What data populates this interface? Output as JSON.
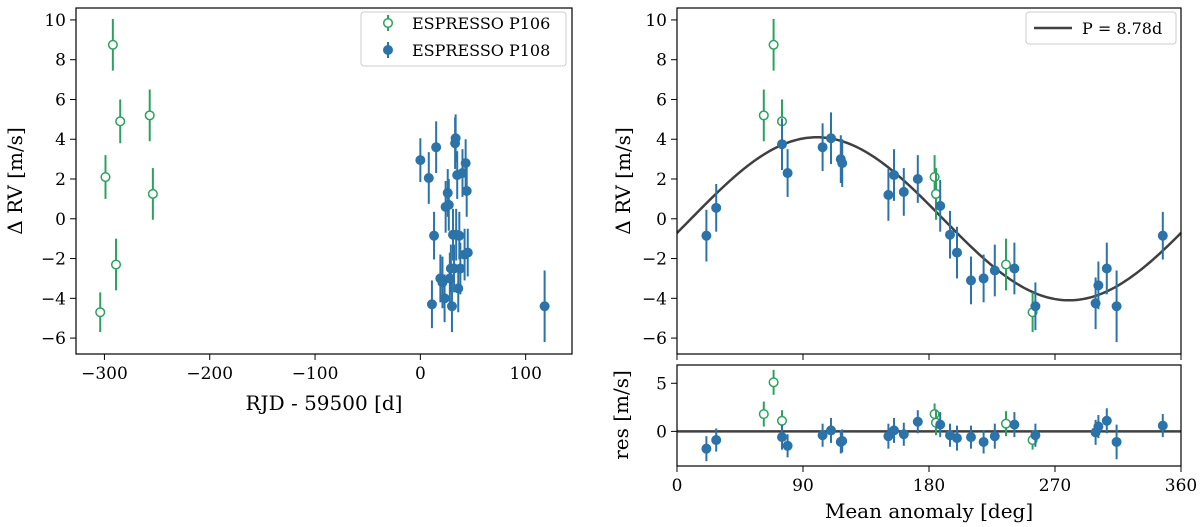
{
  "chart_data": [
    {
      "id": "time",
      "type": "scatter",
      "xlabel": "RJD - 59500 [d]",
      "ylabel": "Δ RV [m/s]",
      "xlim": [
        -327,
        144
      ],
      "ylim": [
        -6.8,
        10.6
      ],
      "xticks": [
        -300,
        -200,
        -100,
        0,
        100
      ],
      "yticks": [
        -6,
        -4,
        -2,
        0,
        2,
        4,
        6,
        8,
        10
      ],
      "legend": {
        "placement": "top-right",
        "entries": [
          "ESPRESSO P106",
          "ESPRESSO P108"
        ]
      },
      "series": [
        {
          "name": "ESPRESSO P106",
          "marker": "open-circle",
          "color": "#2ca25f",
          "x": [
            -304,
            -299,
            -292,
            -289,
            -285,
            -257,
            -254
          ],
          "y": [
            -4.7,
            2.1,
            8.75,
            -2.3,
            4.9,
            5.2,
            1.25
          ],
          "err": [
            1.0,
            1.1,
            1.3,
            1.3,
            1.1,
            1.3,
            1.3
          ]
        },
        {
          "name": "ESPRESSO P108",
          "marker": "filled-circle",
          "color": "#2b73a8",
          "x": [
            0,
            8,
            11,
            13,
            15,
            19,
            21,
            23,
            24,
            26,
            27,
            28,
            29,
            30,
            31,
            32,
            33,
            33.5,
            34,
            35,
            36,
            37,
            38,
            40,
            42,
            43,
            44,
            45,
            118
          ],
          "y": [
            2.95,
            2.05,
            -4.3,
            -0.85,
            3.6,
            -3.0,
            -3.2,
            -4.0,
            0.6,
            1.3,
            0.7,
            -3.0,
            -2.5,
            -4.4,
            -0.8,
            -2.5,
            3.8,
            4.05,
            -0.8,
            2.2,
            -3.5,
            -0.85,
            -2.5,
            2.3,
            -1.8,
            2.8,
            1.4,
            -1.7,
            -4.4
          ],
          "err": [
            1.1,
            1.3,
            1.2,
            1.2,
            1.3,
            1.2,
            1.3,
            1.2,
            1.3,
            1.2,
            1.3,
            1.3,
            1.2,
            1.3,
            1.3,
            1.2,
            1.3,
            1.2,
            1.3,
            1.2,
            1.2,
            1.2,
            1.3,
            1.2,
            1.3,
            1.2,
            1.3,
            1.2,
            1.8
          ]
        }
      ]
    },
    {
      "id": "phase",
      "type": "scatter",
      "xlabel": "Mean anomaly [deg]",
      "ylabel": "Δ RV [m/s]",
      "xlim": [
        0,
        360
      ],
      "ylim": [
        -6.8,
        10.6
      ],
      "yticks": [
        -6,
        -4,
        -2,
        0,
        2,
        4,
        6,
        8,
        10
      ],
      "legend": {
        "placement": "top-right",
        "entries": [
          "P = 8.78d"
        ]
      },
      "model": {
        "name": "P = 8.78d",
        "amplitude": 4.1,
        "phase_peak_deg": 100
      },
      "series": [
        {
          "name": "ESPRESSO P106",
          "marker": "open-circle",
          "color": "#2ca25f",
          "x": [
            62,
            69,
            75,
            184,
            185,
            235,
            254
          ],
          "y": [
            5.2,
            8.75,
            4.9,
            2.1,
            1.25,
            -2.3,
            -4.7
          ],
          "err": [
            1.3,
            1.3,
            1.1,
            1.1,
            1.3,
            1.3,
            1.0
          ]
        },
        {
          "name": "ESPRESSO P108",
          "marker": "filled-circle",
          "color": "#2b73a8",
          "x": [
            21,
            28,
            75,
            79,
            104,
            110,
            117,
            118,
            151,
            155,
            162,
            172,
            188,
            195,
            200,
            210,
            219,
            227,
            241,
            256,
            299,
            301,
            307,
            314,
            347
          ],
          "y": [
            -0.85,
            0.55,
            3.75,
            2.3,
            3.6,
            4.05,
            3.0,
            2.8,
            1.2,
            2.2,
            1.35,
            2.0,
            0.65,
            -0.8,
            -1.7,
            -3.1,
            -3.0,
            -2.6,
            -2.5,
            -4.4,
            -4.25,
            -3.35,
            -2.5,
            -4.4,
            -0.85
          ],
          "err": [
            1.3,
            1.2,
            1.3,
            1.2,
            1.2,
            1.3,
            1.2,
            1.2,
            1.3,
            1.3,
            1.2,
            1.2,
            1.3,
            1.2,
            1.3,
            1.2,
            1.2,
            1.3,
            1.3,
            1.2,
            1.3,
            1.2,
            1.3,
            1.8,
            1.2
          ]
        }
      ]
    },
    {
      "id": "residuals",
      "type": "scatter",
      "xlabel": "Mean anomaly [deg]",
      "ylabel": "res [m/s]",
      "xlim": [
        0,
        360
      ],
      "ylim": [
        -3.6,
        6.9
      ],
      "xticks": [
        0,
        90,
        180,
        270,
        360
      ],
      "yticks": [
        0,
        5
      ],
      "zero_line": true,
      "series": [
        {
          "name": "ESPRESSO P106",
          "marker": "open-circle",
          "color": "#2ca25f",
          "x": [
            62,
            69,
            75,
            184,
            185,
            235,
            254
          ],
          "y": [
            1.8,
            5.1,
            1.1,
            1.8,
            0.9,
            0.8,
            -0.9
          ],
          "err": [
            1.3,
            1.3,
            1.1,
            1.1,
            1.3,
            1.3,
            1.0
          ]
        },
        {
          "name": "ESPRESSO P108",
          "marker": "filled-circle",
          "color": "#2b73a8",
          "x": [
            21,
            28,
            75,
            79,
            104,
            110,
            117,
            118,
            151,
            155,
            162,
            172,
            188,
            195,
            200,
            210,
            219,
            227,
            241,
            256,
            299,
            301,
            307,
            314,
            347
          ],
          "y": [
            -1.8,
            -0.9,
            -0.6,
            -1.5,
            -0.4,
            0.1,
            -1.1,
            -1.0,
            -0.5,
            0.1,
            -0.3,
            1.0,
            0.7,
            -0.4,
            -0.7,
            -0.6,
            -1.1,
            -0.5,
            0.7,
            -0.4,
            -0.1,
            0.5,
            1.1,
            -1.1,
            0.6
          ],
          "err": [
            1.3,
            1.2,
            1.3,
            1.2,
            1.2,
            1.3,
            1.2,
            1.2,
            1.3,
            1.3,
            1.2,
            1.2,
            1.3,
            1.2,
            1.3,
            1.2,
            1.2,
            1.3,
            1.3,
            1.2,
            1.3,
            1.2,
            1.3,
            1.8,
            1.2
          ]
        }
      ]
    }
  ]
}
